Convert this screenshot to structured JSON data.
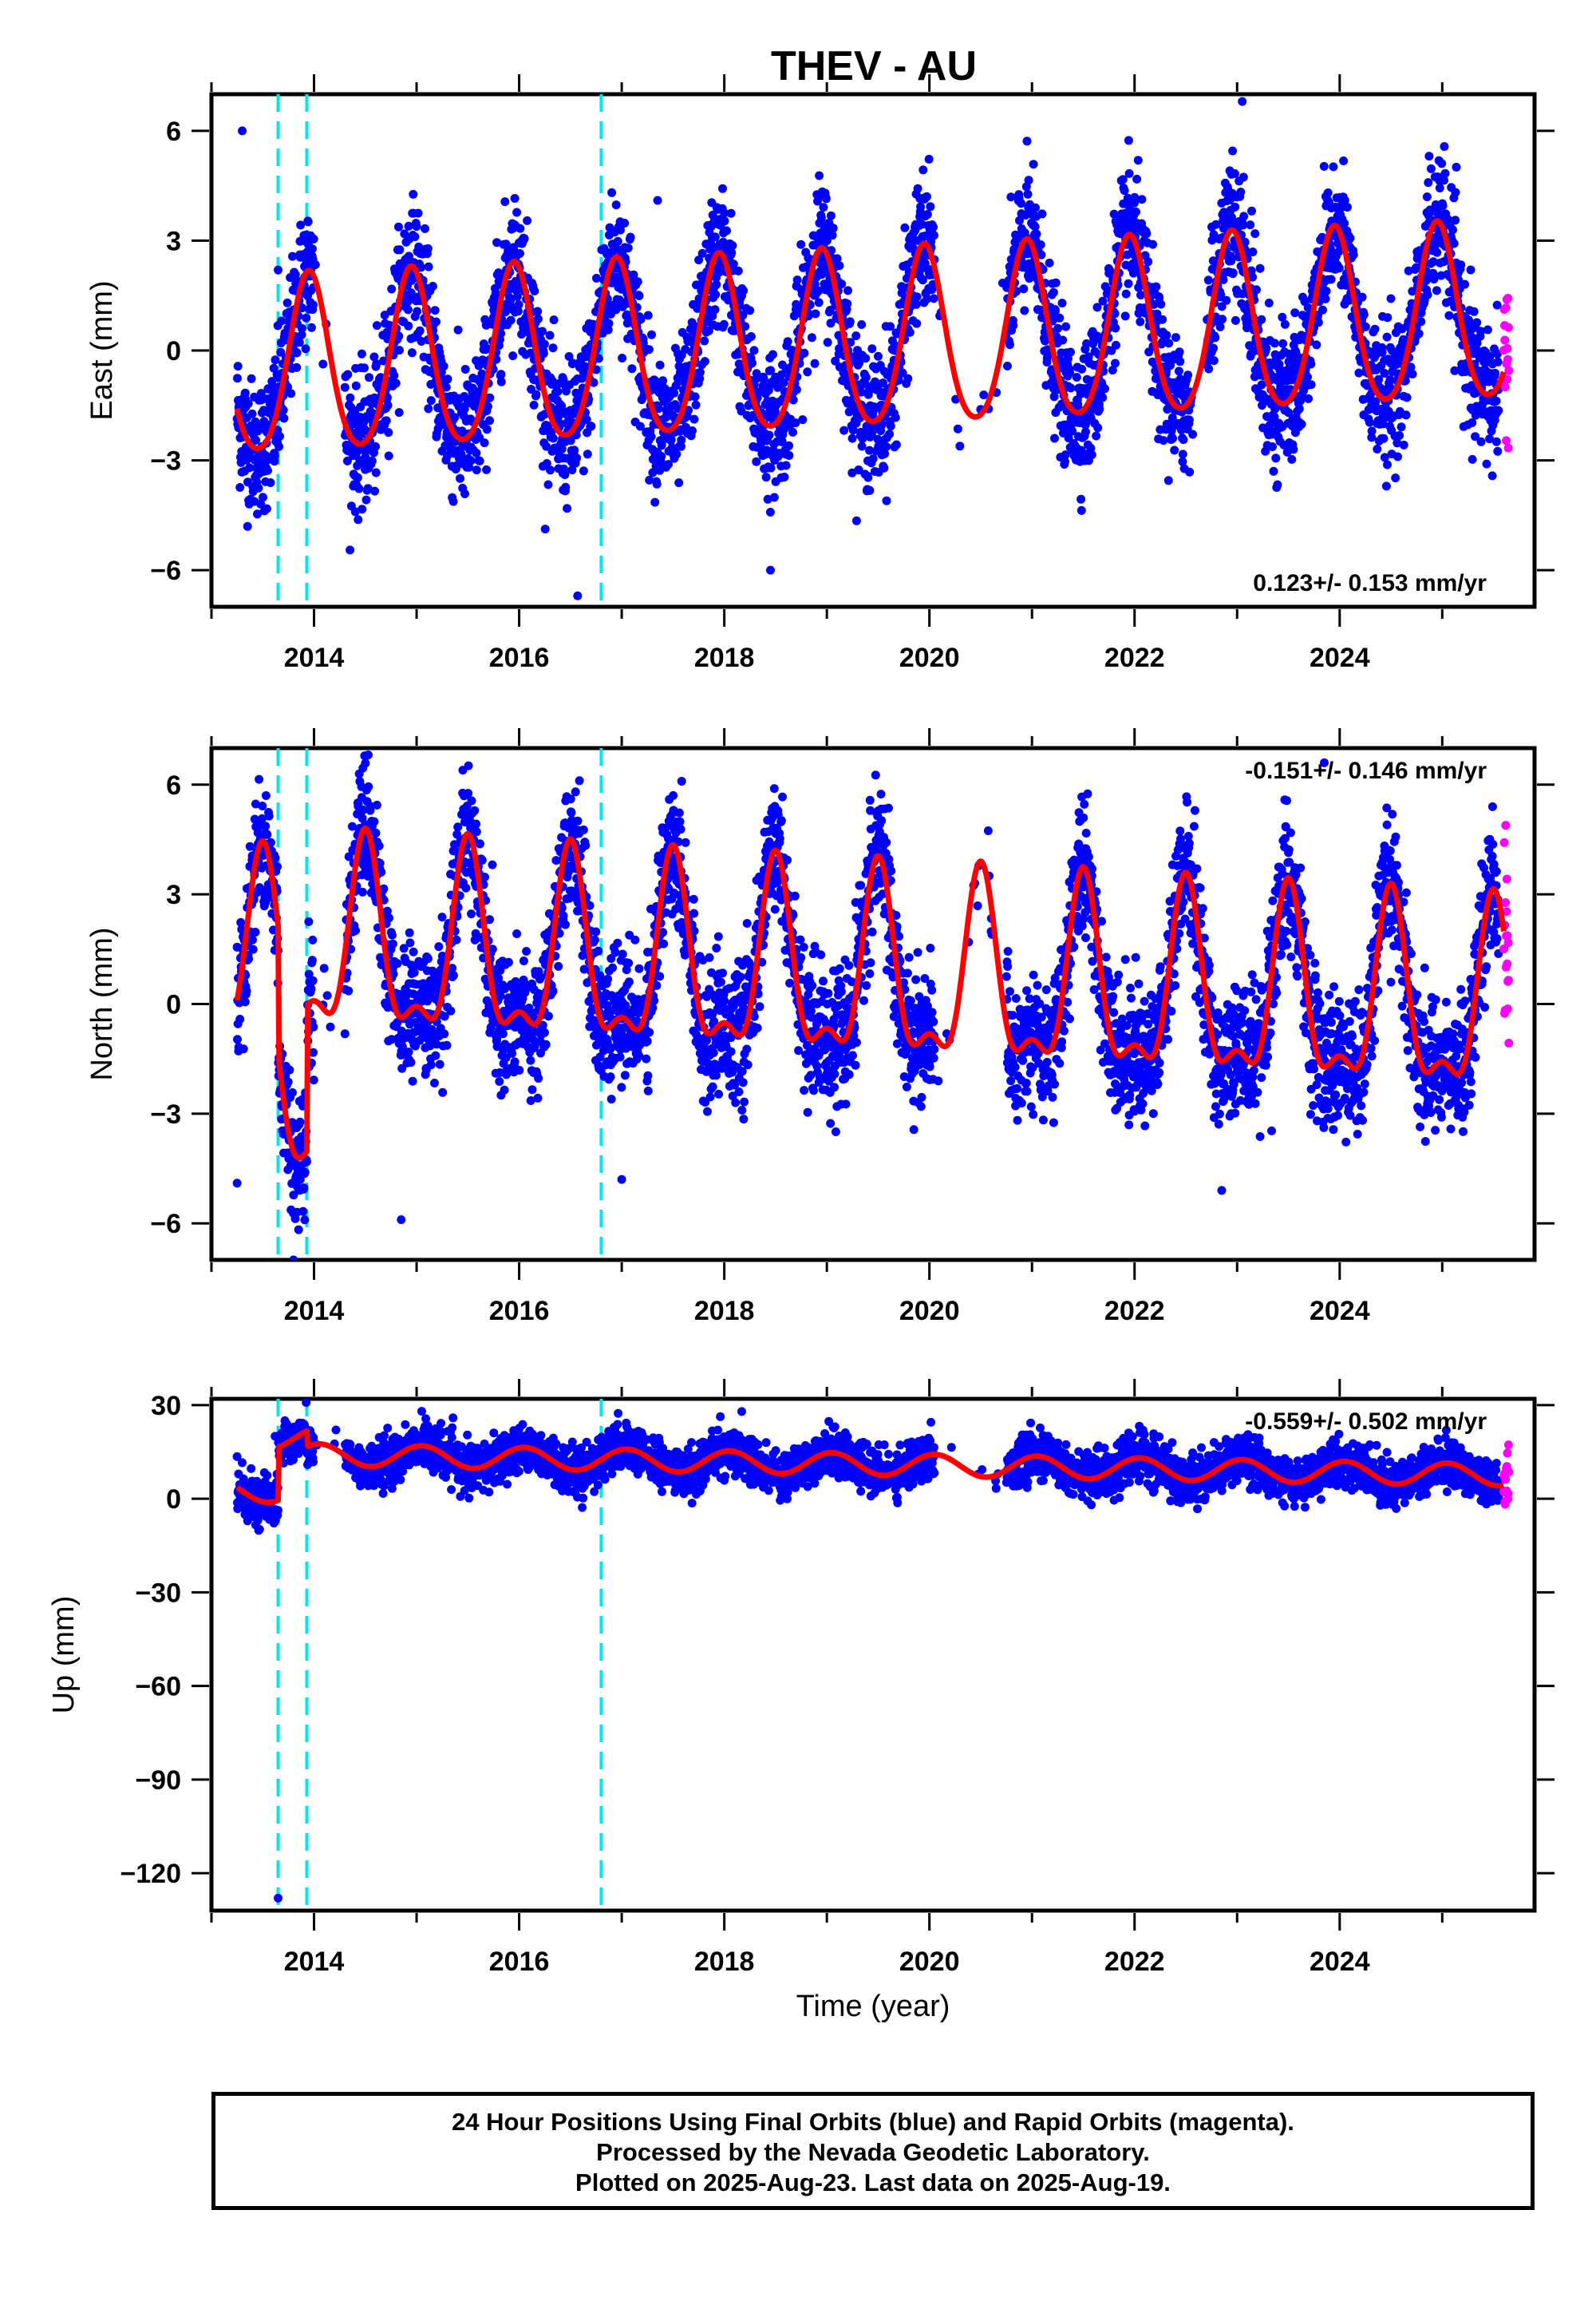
{
  "title": "THEV - AU",
  "colors": {
    "final_orbits": "#0000ff",
    "rapid_orbits": "#ff00ff",
    "model": "#ff0000",
    "events": "#00e5ee"
  },
  "chart_data": [
    {
      "type": "scatter",
      "component": "east",
      "ylabel": "East (mm)",
      "xlabel": "",
      "xlim": [
        2013.0,
        2025.9
      ],
      "ylim": [
        -7,
        7
      ],
      "yticks": [
        -6,
        -3,
        0,
        3,
        6
      ],
      "ytick_labels": [
        "−6",
        "−3",
        "0",
        "3",
        "6"
      ],
      "xticks": [
        2014,
        2016,
        2018,
        2020,
        2022,
        2024
      ],
      "xtick_labels": [
        "2014",
        "2016",
        "2018",
        "2020",
        "2022",
        "2024"
      ],
      "rate": "0.123+/- 0.153 mm/yr",
      "rate_position": "bottom-right",
      "event_lines": [
        2013.65,
        2013.93,
        2016.8
      ],
      "model": {
        "trend_mm_per_yr": 0.123,
        "offset": -0.6,
        "annual_amplitude": 2.4,
        "annual_phase_peak": 0.95,
        "semiannual_amplitude": 0.3,
        "steps": []
      },
      "data_span": [
        2013.25,
        2025.55
      ],
      "gaps": [
        [
          2014.0,
          2014.3
        ],
        [
          2020.05,
          2020.75
        ],
        [
          2022.55,
          2022.7
        ]
      ],
      "scatter_sd": 0.9,
      "rapid_span": [
        2025.6,
        2025.65
      ],
      "outliers": [
        [
          2013.3,
          6.0
        ],
        [
          2013.65,
          2.2
        ],
        [
          2016.57,
          -6.7
        ],
        [
          2018.45,
          -6.0
        ],
        [
          2017.35,
          4.1
        ],
        [
          2023.05,
          6.8
        ]
      ]
    },
    {
      "type": "scatter",
      "component": "north",
      "ylabel": "North (mm)",
      "xlabel": "",
      "xlim": [
        2013.0,
        2025.9
      ],
      "ylim": [
        -7,
        7
      ],
      "yticks": [
        -6,
        -3,
        0,
        3,
        6
      ],
      "ytick_labels": [
        "−6",
        "−3",
        "0",
        "3",
        "6"
      ],
      "xticks": [
        2014,
        2016,
        2018,
        2020,
        2022,
        2024
      ],
      "xtick_labels": [
        "2014",
        "2016",
        "2018",
        "2020",
        "2022",
        "2024"
      ],
      "rate": "-0.151+/- 0.146 mm/yr",
      "rate_position": "top-right",
      "event_lines": [
        2013.65,
        2013.93,
        2016.8
      ],
      "model": {
        "trend_mm_per_yr": -0.151,
        "offset": 1.1,
        "annual_amplitude": 2.4,
        "annual_phase_peak": 0.5,
        "semiannual_amplitude": 1.0,
        "steps": [
          [
            2013.65,
            -3.5
          ],
          [
            2013.93,
            4.0
          ]
        ]
      },
      "data_span": [
        2013.25,
        2025.55
      ],
      "gaps": [
        [
          2014.0,
          2014.3
        ],
        [
          2020.05,
          2020.75
        ]
      ],
      "scatter_sd": 0.9,
      "rapid_span": [
        2025.6,
        2025.65
      ],
      "outliers": [
        [
          2013.25,
          -4.9
        ],
        [
          2014.85,
          -5.9
        ],
        [
          2017.0,
          -4.8
        ],
        [
          2022.85,
          -5.1
        ],
        [
          2023.85,
          6.6
        ],
        [
          2013.8,
          -7.0
        ]
      ]
    },
    {
      "type": "scatter",
      "component": "up",
      "ylabel": "Up (mm)",
      "xlabel": "Time (year)",
      "xlim": [
        2013.0,
        2025.9
      ],
      "ylim": [
        -132,
        32
      ],
      "yticks": [
        -120,
        -90,
        -60,
        -30,
        0,
        30
      ],
      "ytick_labels": [
        "−120",
        "−90",
        "−60",
        "−30",
        "0",
        "30"
      ],
      "xticks": [
        2014,
        2016,
        2018,
        2020,
        2022,
        2024
      ],
      "xtick_labels": [
        "2014",
        "2016",
        "2018",
        "2020",
        "2022",
        "2024"
      ],
      "rate": "-0.559+/- 0.502 mm/yr",
      "rate_position": "top-right",
      "event_lines": [
        2013.65,
        2013.93,
        2016.8
      ],
      "model": {
        "trend_mm_per_yr": -0.559,
        "offset": 2.5,
        "annual_amplitude": 3.5,
        "annual_phase_peak": 0.05,
        "semiannual_amplitude": 0.0,
        "steps": [
          [
            2013.65,
            17.0
          ],
          [
            2013.93,
            -5.0
          ]
        ]
      },
      "data_span": [
        2013.25,
        2025.55
      ],
      "gaps": [
        [
          2014.0,
          2014.3
        ],
        [
          2020.05,
          2020.75
        ]
      ],
      "scatter_sd": 3.6,
      "rapid_span": [
        2025.6,
        2025.65
      ],
      "outliers": [
        [
          2013.65,
          -128.0
        ],
        [
          2015.05,
          28.0
        ],
        [
          2017.05,
          23.0
        ],
        [
          2013.62,
          20.0
        ]
      ]
    }
  ],
  "footer": {
    "line1": "24 Hour Positions Using Final Orbits (blue) and Rapid Orbits (magenta).",
    "line2": "Processed by the Nevada Geodetic Laboratory.",
    "line3": "Plotted on 2025-Aug-23. Last data on 2025-Aug-19."
  }
}
